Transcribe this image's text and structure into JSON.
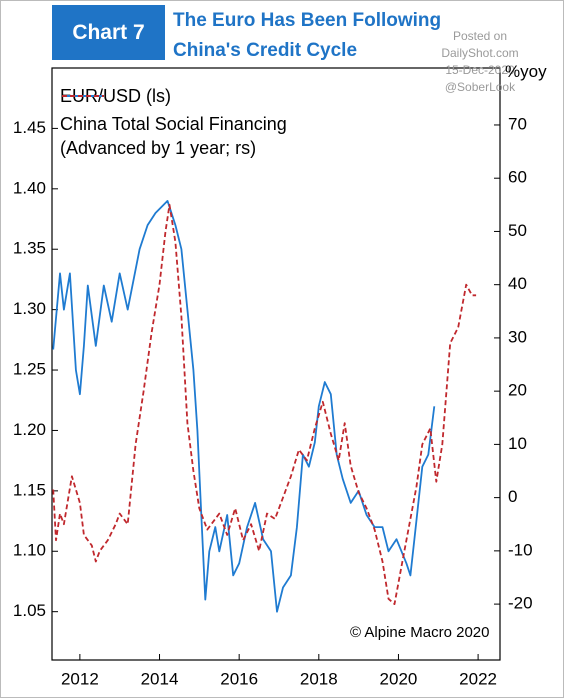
{
  "chart_data": {
    "type": "line",
    "badge": "Chart 7",
    "title": [
      "The Euro Has Been Following",
      "China's Credit Cycle"
    ],
    "watermark": [
      "Posted on",
      "DailyShot.com",
      "15-Dec-2020",
      "@SoberLook"
    ],
    "y2_unit": "%yoy",
    "credit": "© Alpine Macro 2020",
    "xlim": [
      2011.3,
      2022.55
    ],
    "xticks": [
      2012,
      2014,
      2016,
      2018,
      2020,
      2022
    ],
    "ylim": [
      1.01,
      1.5
    ],
    "yticks": [
      1.05,
      {
        "value": 1.1,
        "label": "1.10"
      },
      1.15,
      {
        "value": 1.2,
        "label": "1.20"
      },
      1.25,
      {
        "value": 1.3,
        "label": "1.30"
      },
      1.35,
      {
        "value": 1.4,
        "label": "1.40"
      },
      1.45
    ],
    "y2lim": [
      -30.5,
      80.7
    ],
    "y2ticks": [
      -20,
      -10,
      0,
      10,
      20,
      30,
      40,
      50,
      60,
      70
    ],
    "series": [
      {
        "name": "EUR/USD (ls)",
        "color": "#1f7bd1",
        "dash": false,
        "x": [
          2011.33,
          2011.5,
          2011.6,
          2011.75,
          2011.9,
          2012.0,
          2012.1,
          2012.2,
          2012.4,
          2012.6,
          2012.8,
          2013.0,
          2013.2,
          2013.5,
          2013.7,
          2013.9,
          2014.2,
          2014.4,
          2014.55,
          2014.7,
          2014.85,
          2014.95,
          2015.05,
          2015.15,
          2015.25,
          2015.4,
          2015.5,
          2015.7,
          2015.85,
          2016.0,
          2016.2,
          2016.4,
          2016.6,
          2016.8,
          2016.95,
          2017.1,
          2017.3,
          2017.45,
          2017.6,
          2017.75,
          2017.9,
          2018.0,
          2018.15,
          2018.3,
          2018.45,
          2018.6,
          2018.8,
          2019.0,
          2019.2,
          2019.4,
          2019.6,
          2019.75,
          2019.95,
          2020.2,
          2020.3,
          2020.4,
          2020.6,
          2020.75,
          2020.9
        ],
        "values": [
          1.267,
          1.33,
          1.3,
          1.33,
          1.25,
          1.23,
          1.27,
          1.32,
          1.27,
          1.32,
          1.29,
          1.33,
          1.3,
          1.35,
          1.37,
          1.38,
          1.39,
          1.37,
          1.35,
          1.3,
          1.25,
          1.2,
          1.13,
          1.06,
          1.1,
          1.12,
          1.1,
          1.13,
          1.08,
          1.09,
          1.12,
          1.14,
          1.11,
          1.1,
          1.05,
          1.07,
          1.08,
          1.12,
          1.18,
          1.17,
          1.19,
          1.22,
          1.24,
          1.23,
          1.18,
          1.16,
          1.14,
          1.15,
          1.13,
          1.12,
          1.12,
          1.1,
          1.11,
          1.09,
          1.08,
          1.11,
          1.17,
          1.18,
          1.22
        ]
      },
      {
        "name": "China Total Social Financing (Advanced by 1 year; rs)",
        "color": "#c0282d",
        "dash": true,
        "axis": "y2",
        "x": [
          2011.33,
          2011.4,
          2011.5,
          2011.6,
          2011.8,
          2012.0,
          2012.1,
          2012.3,
          2012.4,
          2012.5,
          2012.7,
          2012.9,
          2013.0,
          2013.2,
          2013.4,
          2013.6,
          2013.8,
          2014.0,
          2014.15,
          2014.25,
          2014.4,
          2014.55,
          2014.7,
          2014.85,
          2015.0,
          2015.2,
          2015.5,
          2015.7,
          2015.9,
          2016.1,
          2016.3,
          2016.5,
          2016.7,
          2016.9,
          2017.1,
          2017.3,
          2017.5,
          2017.7,
          2017.9,
          2018.1,
          2018.3,
          2018.5,
          2018.65,
          2018.8,
          2019.0,
          2019.2,
          2019.4,
          2019.6,
          2019.75,
          2019.9,
          2020.1,
          2020.3,
          2020.45,
          2020.6,
          2020.8,
          2020.95,
          2021.1,
          2021.3,
          2021.5,
          2021.7,
          2021.85,
          2021.95
        ],
        "values": [
          1.5,
          -8,
          -3,
          -5,
          4,
          -1,
          -7,
          -9,
          -12,
          -10,
          -8,
          -5,
          -3,
          -5,
          10,
          20,
          31,
          40,
          50,
          55,
          48,
          34,
          14,
          5,
          -2,
          -6,
          -3,
          -7,
          -2,
          -8,
          -5,
          -10,
          -3,
          -4,
          0,
          4,
          9,
          7,
          13,
          18,
          12,
          7,
          14,
          6,
          1,
          -2,
          -6,
          -12,
          -19,
          -20,
          -12,
          -4,
          2,
          10,
          13,
          3,
          10,
          29,
          32,
          40,
          38,
          38
        ]
      }
    ]
  }
}
